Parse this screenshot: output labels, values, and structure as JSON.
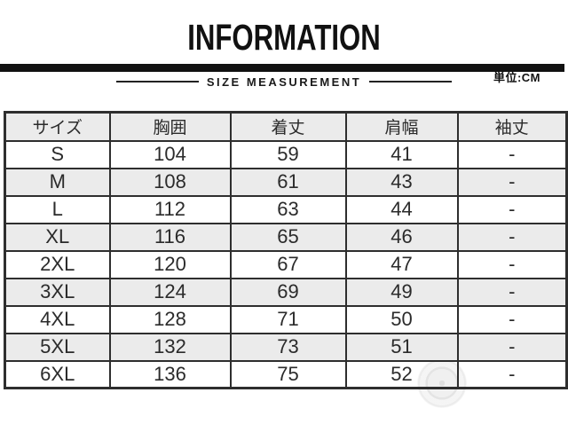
{
  "header": {
    "title": "INFORMATION",
    "unit_label": "単位:CM",
    "section_label": "SIZE MEASUREMENT"
  },
  "table": {
    "columns": [
      "サイズ",
      "胸囲",
      "着丈",
      "肩幅",
      "袖丈"
    ],
    "rows": [
      [
        "S",
        "104",
        "59",
        "41",
        "-"
      ],
      [
        "M",
        "108",
        "61",
        "43",
        "-"
      ],
      [
        "L",
        "112",
        "63",
        "44",
        "-"
      ],
      [
        "XL",
        "116",
        "65",
        "46",
        "-"
      ],
      [
        "2XL",
        "120",
        "67",
        "47",
        "-"
      ],
      [
        "3XL",
        "124",
        "69",
        "49",
        "-"
      ],
      [
        "4XL",
        "128",
        "71",
        "50",
        "-"
      ],
      [
        "5XL",
        "132",
        "73",
        "51",
        "-"
      ],
      [
        "6XL",
        "136",
        "75",
        "52",
        "-"
      ]
    ]
  },
  "watermark": {
    "shape": "faint-circular-seal"
  },
  "colors": {
    "bar": "#111111",
    "border": "#2e2e2e",
    "stripe": "#ebebeb",
    "text": "#333333",
    "title": "#111111",
    "background": "#ffffff"
  }
}
